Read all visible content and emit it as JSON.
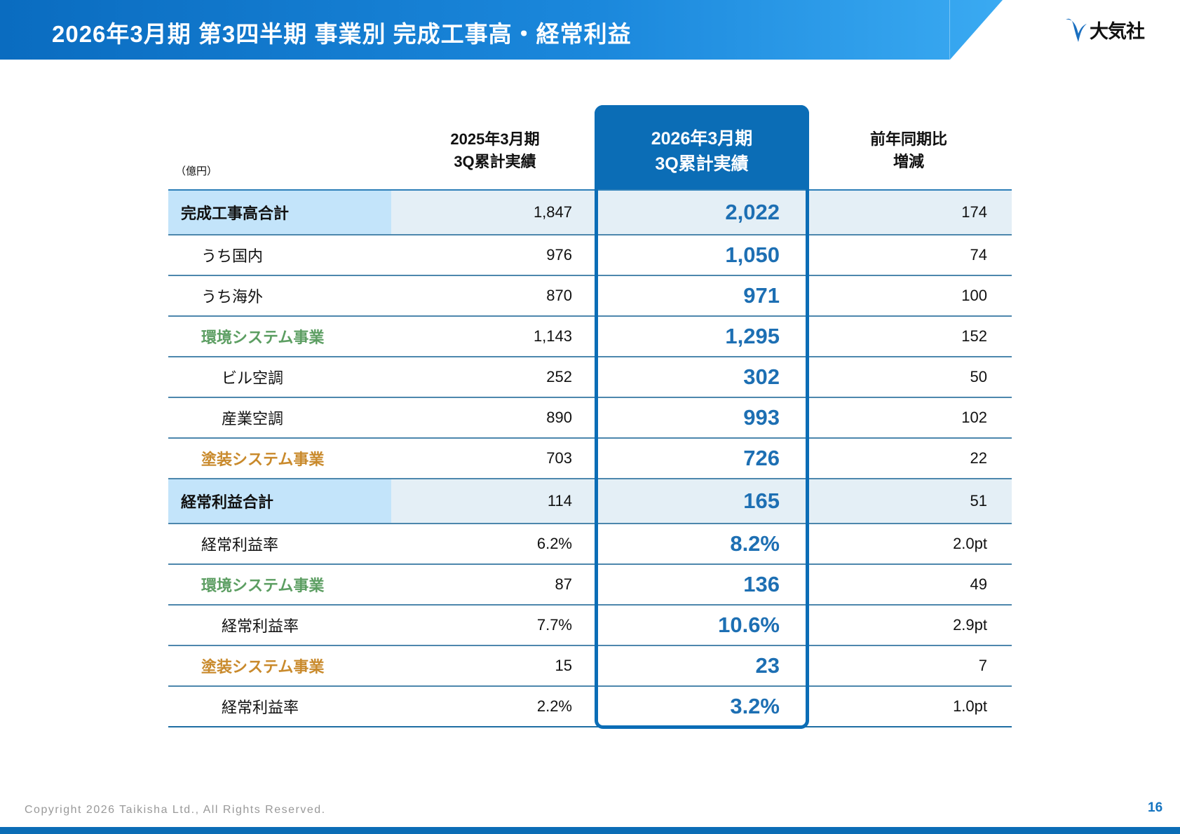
{
  "header": {
    "title": "2026年3月期 第3四半期 事業別 完成工事高・経常利益",
    "logo_text": "大気社",
    "accent": "#0b6db6"
  },
  "table": {
    "unit": "（億円）",
    "columns": [
      {
        "line1": "2025年3月期",
        "line2": "3Q累計実績"
      },
      {
        "line1": "2026年3月期",
        "line2": "3Q累計実績"
      },
      {
        "line1": "前年同期比",
        "line2": "増減"
      }
    ],
    "rows": [
      {
        "label": "完成工事高合計",
        "prev": "1,847",
        "curr": "2,022",
        "diff": "174",
        "style": "total",
        "indent": 0
      },
      {
        "label": "うち国内",
        "prev": "976",
        "curr": "1,050",
        "diff": "74",
        "style": "normal",
        "indent": 1
      },
      {
        "label": "うち海外",
        "prev": "870",
        "curr": "971",
        "diff": "100",
        "style": "normal",
        "indent": 1
      },
      {
        "label": "環境システム事業",
        "prev": "1,143",
        "curr": "1,295",
        "diff": "152",
        "style": "green",
        "indent": 1
      },
      {
        "label": "ビル空調",
        "prev": "252",
        "curr": "302",
        "diff": "50",
        "style": "normal",
        "indent": 2
      },
      {
        "label": "産業空調",
        "prev": "890",
        "curr": "993",
        "diff": "102",
        "style": "normal",
        "indent": 2
      },
      {
        "label": "塗装システム事業",
        "prev": "703",
        "curr": "726",
        "diff": "22",
        "style": "orange",
        "indent": 1
      },
      {
        "label": "経常利益合計",
        "prev": "114",
        "curr": "165",
        "diff": "51",
        "style": "total",
        "indent": 0
      },
      {
        "label": "経常利益率",
        "prev": "6.2%",
        "curr": "8.2%",
        "diff": "2.0pt",
        "style": "normal",
        "indent": 1
      },
      {
        "label": "環境システム事業",
        "prev": "87",
        "curr": "136",
        "diff": "49",
        "style": "green",
        "indent": 1
      },
      {
        "label": "経常利益率",
        "prev": "7.7%",
        "curr": "10.6%",
        "diff": "2.9pt",
        "style": "normal",
        "indent": 2
      },
      {
        "label": "塗装システム事業",
        "prev": "15",
        "curr": "23",
        "diff": "7",
        "style": "orange",
        "indent": 1
      },
      {
        "label": "経常利益率",
        "prev": "2.2%",
        "curr": "3.2%",
        "diff": "1.0pt",
        "style": "normal",
        "indent": 2
      }
    ],
    "colors": {
      "green": "#5c9e62",
      "orange": "#c98a2c",
      "value": "#1d6fb3"
    }
  },
  "footer": {
    "copyright": "Copyright  2026 Taikisha Ltd., All Rights Reserved.",
    "page": "16"
  }
}
